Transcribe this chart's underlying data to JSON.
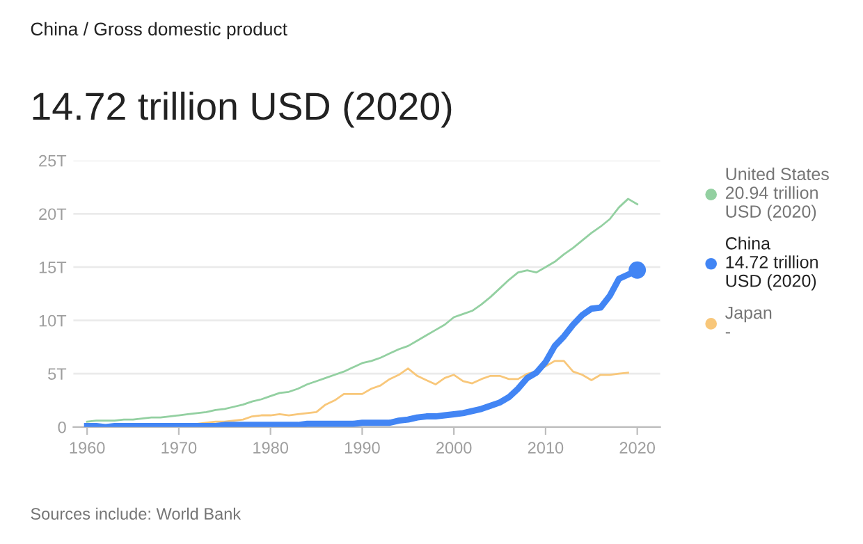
{
  "chart_data": {
    "type": "line",
    "subtitle": "China / Gross domestic product",
    "title": "14.72 trillion USD (2020)",
    "x": [
      1960,
      1961,
      1962,
      1963,
      1964,
      1965,
      1966,
      1967,
      1968,
      1969,
      1970,
      1971,
      1972,
      1973,
      1974,
      1975,
      1976,
      1977,
      1978,
      1979,
      1980,
      1981,
      1982,
      1983,
      1984,
      1985,
      1986,
      1987,
      1988,
      1989,
      1990,
      1991,
      1992,
      1993,
      1994,
      1995,
      1996,
      1997,
      1998,
      1999,
      2000,
      2001,
      2002,
      2003,
      2004,
      2005,
      2006,
      2007,
      2008,
      2009,
      2010,
      2011,
      2012,
      2013,
      2014,
      2015,
      2016,
      2017,
      2018,
      2019,
      2020
    ],
    "series": [
      {
        "name": "United States",
        "color": "#93d0a1",
        "values": [
          0.5,
          0.6,
          0.6,
          0.6,
          0.7,
          0.7,
          0.8,
          0.9,
          0.9,
          1.0,
          1.1,
          1.2,
          1.3,
          1.4,
          1.6,
          1.7,
          1.9,
          2.1,
          2.4,
          2.6,
          2.9,
          3.2,
          3.3,
          3.6,
          4.0,
          4.3,
          4.6,
          4.9,
          5.2,
          5.6,
          6.0,
          6.2,
          6.5,
          6.9,
          7.3,
          7.6,
          8.1,
          8.6,
          9.1,
          9.6,
          10.3,
          10.6,
          10.9,
          11.5,
          12.2,
          13.0,
          13.8,
          14.5,
          14.7,
          14.5,
          15.0,
          15.5,
          16.2,
          16.8,
          17.5,
          18.2,
          18.8,
          19.5,
          20.6,
          21.4,
          20.9
        ]
      },
      {
        "name": "China",
        "color": "#4285f4",
        "values": [
          0.1,
          0.1,
          0.0,
          0.1,
          0.1,
          0.1,
          0.1,
          0.1,
          0.1,
          0.1,
          0.1,
          0.1,
          0.1,
          0.1,
          0.1,
          0.2,
          0.2,
          0.2,
          0.2,
          0.2,
          0.2,
          0.2,
          0.2,
          0.2,
          0.3,
          0.3,
          0.3,
          0.3,
          0.3,
          0.3,
          0.4,
          0.4,
          0.4,
          0.4,
          0.6,
          0.7,
          0.9,
          1.0,
          1.0,
          1.1,
          1.2,
          1.3,
          1.5,
          1.7,
          2.0,
          2.3,
          2.8,
          3.6,
          4.6,
          5.1,
          6.1,
          7.6,
          8.5,
          9.6,
          10.5,
          11.1,
          11.2,
          12.3,
          13.9,
          14.3,
          14.7
        ]
      },
      {
        "name": "Japan",
        "color": "#f8c77a",
        "values": [
          null,
          null,
          null,
          null,
          null,
          null,
          null,
          null,
          null,
          null,
          null,
          null,
          0.3,
          0.4,
          0.5,
          0.5,
          0.6,
          0.7,
          1.0,
          1.1,
          1.1,
          1.2,
          1.1,
          1.2,
          1.3,
          1.4,
          2.1,
          2.5,
          3.1,
          3.1,
          3.1,
          3.6,
          3.9,
          4.5,
          4.9,
          5.5,
          4.8,
          4.4,
          4.0,
          4.6,
          4.9,
          4.3,
          4.1,
          4.5,
          4.8,
          4.8,
          4.5,
          4.5,
          5.0,
          5.2,
          5.7,
          6.2,
          6.2,
          5.2,
          4.9,
          4.4,
          4.9,
          4.9,
          5.0,
          5.1,
          null
        ]
      },
      {
        "type": "scatter",
        "color": "#4285f4",
        "x": [
          2020
        ],
        "values": [
          14.72
        ]
      }
    ],
    "annotations": [
      "20.94 trillion USD (2020)",
      "14.72 trillion USD (2020)",
      "-",
      "Sources include: World Bank"
    ],
    "xlim": [
      1958.5,
      2022.5
    ],
    "xticks": [
      1960,
      1970,
      1980,
      1990,
      2000,
      2010,
      2020
    ],
    "ylim": [
      0,
      25
    ],
    "yticks": [
      {
        "value": 0,
        "label": "0"
      },
      {
        "value": 5,
        "label": "5T"
      },
      {
        "value": 10,
        "label": "10T"
      },
      {
        "value": 15,
        "label": "15T"
      },
      {
        "value": 20,
        "label": "20T"
      },
      {
        "value": 25,
        "label": "25T"
      }
    ],
    "grid": "y",
    "legend": "right"
  }
}
